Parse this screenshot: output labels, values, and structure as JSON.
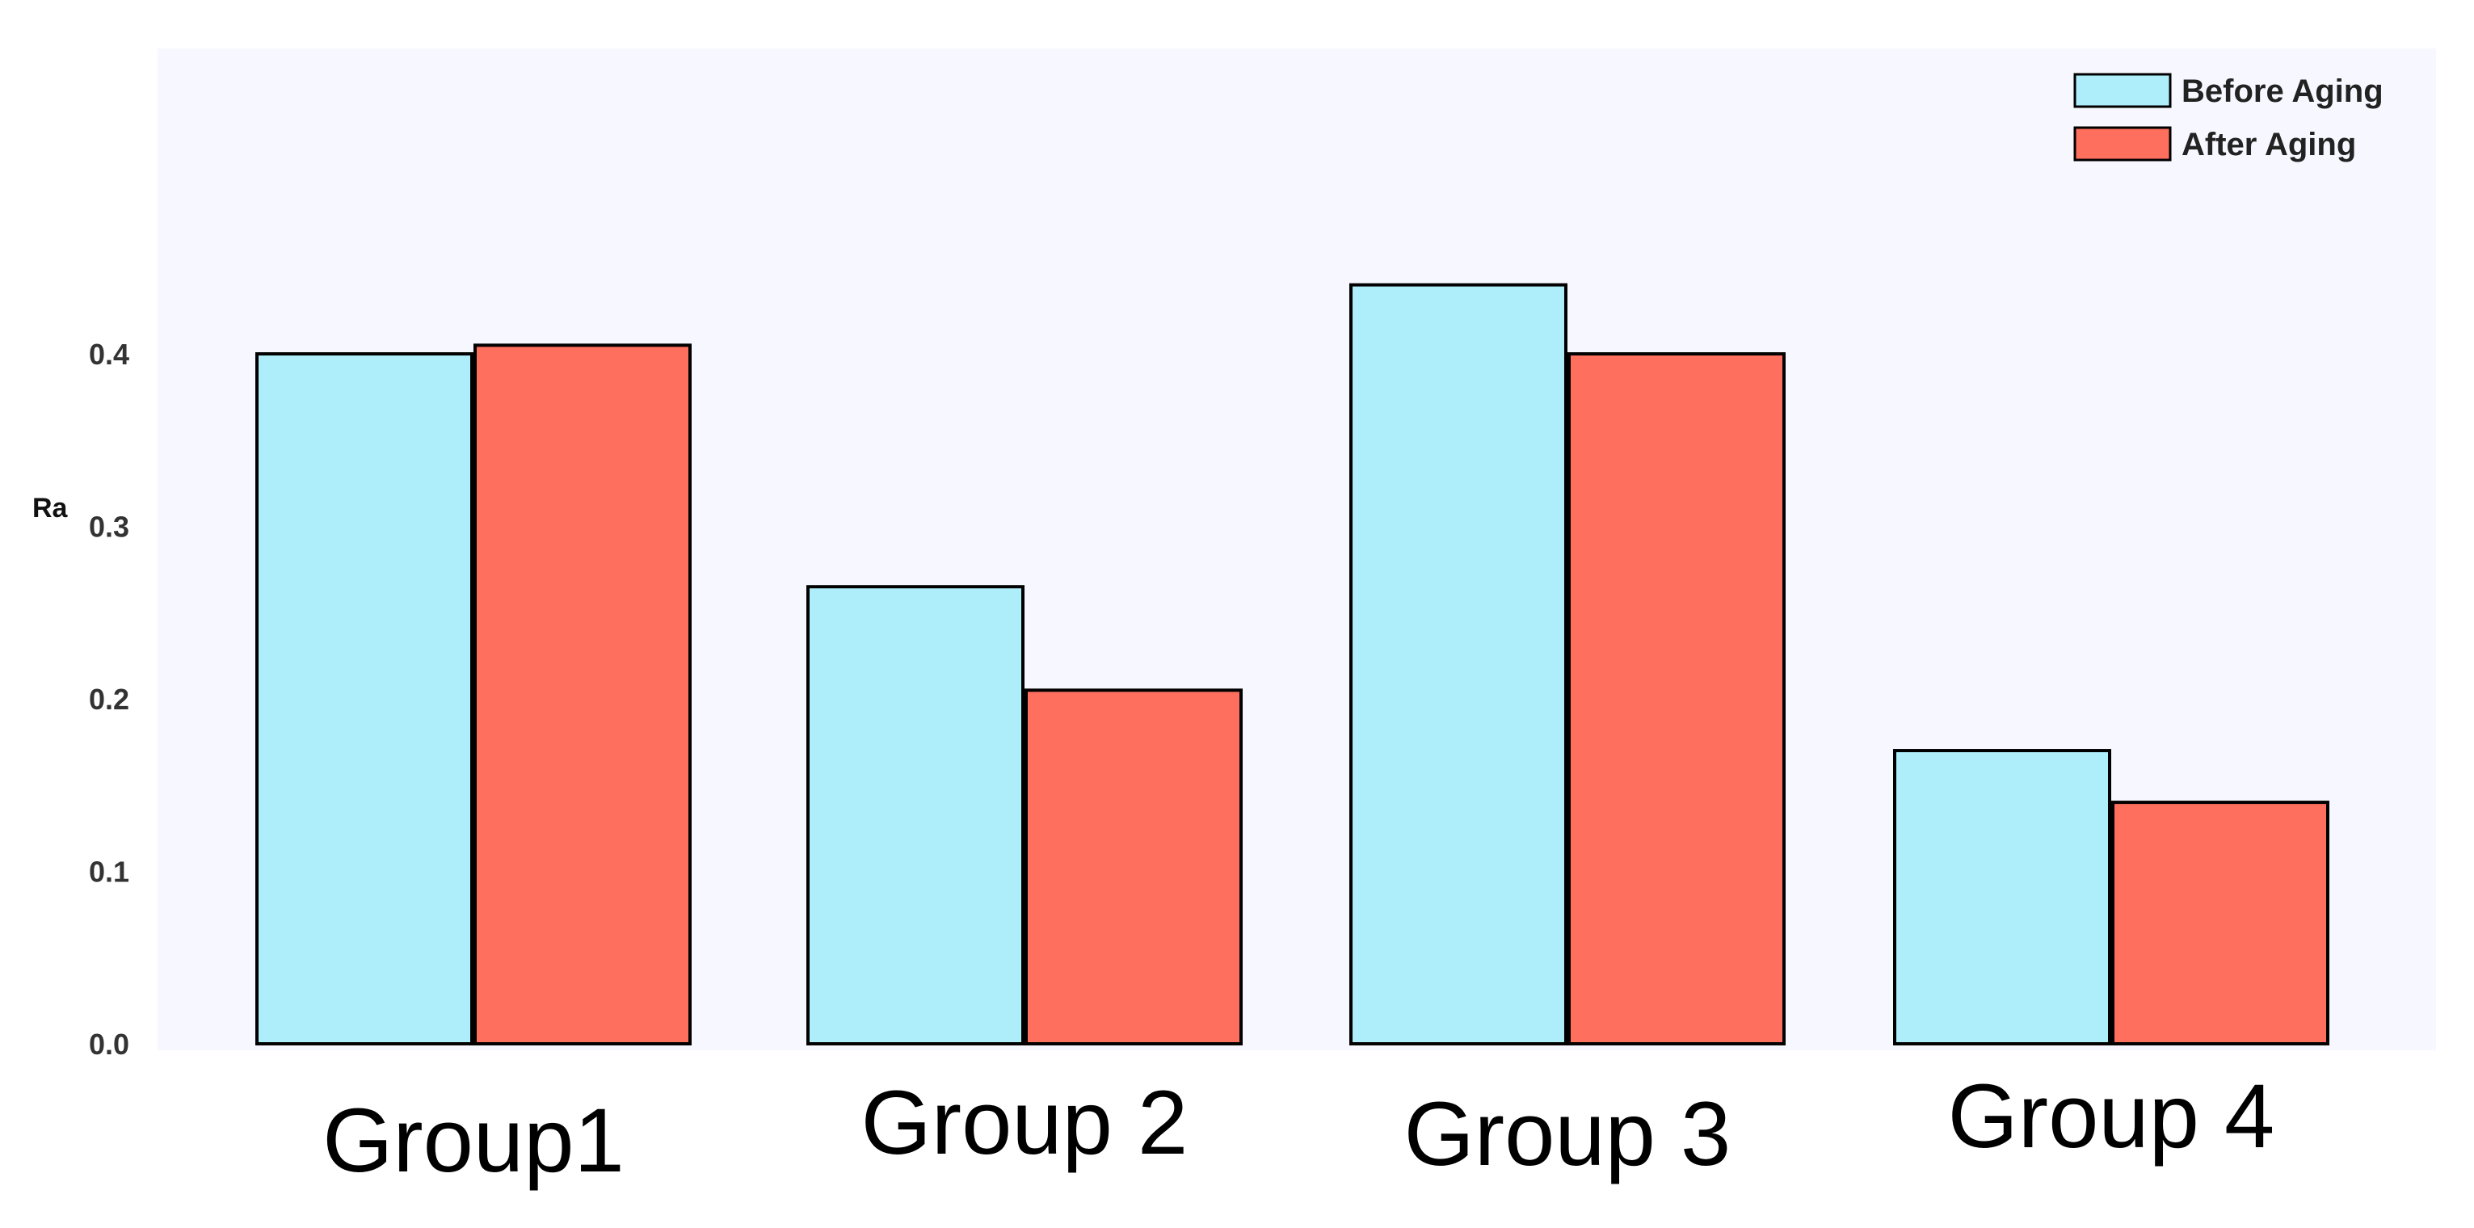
{
  "chart_data": {
    "type": "bar",
    "title": "",
    "xlabel": "",
    "ylabel": "Ra",
    "ylim": [
      0.0,
      0.45
    ],
    "yticks": [
      "0.0",
      "0.1",
      "0.2",
      "0.3",
      "0.4"
    ],
    "categories": [
      "Group1",
      "Group 2",
      "Group 3",
      "Group 4"
    ],
    "series": [
      {
        "name": "Before Aging",
        "color": "#aeeefb",
        "values": [
          0.4,
          0.265,
          0.44,
          0.17
        ]
      },
      {
        "name": "After Aging",
        "color": "#fe6f5e",
        "values": [
          0.405,
          0.205,
          0.4,
          0.14
        ]
      }
    ],
    "grid": false,
    "legend": "top-right",
    "background": "#f7f7ff"
  }
}
